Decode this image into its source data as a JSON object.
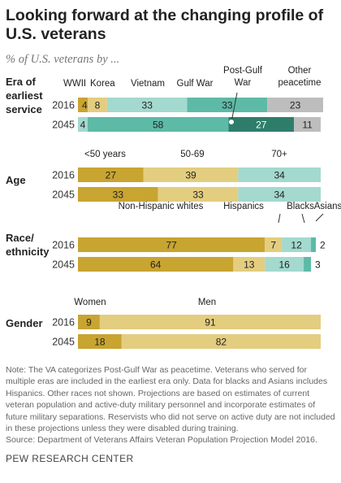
{
  "title": "Looking forward at the changing profile of U.S. veterans",
  "subtitle": "% of U.S. veterans by ...",
  "note": "Note: The VA categorizes Post-Gulf War as peacetime. Veterans who served for multiple eras are included in the earliest era only. Data for blacks and Asians includes Hispanics. Other races not shown. Projections are based on estimates of current veteran population and active-duty military personnel and incorporate estimates of future military separations. Reservists who did not serve on active duty are not included in these projections unless they were disabled during training.",
  "source": "Source: Department of Veterans Affairs Veteran Population Projection Model 2016.",
  "brand": "PEW RESEARCH CENTER",
  "chart_data": {
    "type": "bar",
    "orientation": "horizontal",
    "stacked": true,
    "xlim": [
      0,
      100
    ],
    "groups": [
      {
        "label": "Era of earliest service",
        "rows": [
          "2016",
          "2045"
        ],
        "series": [
          {
            "name": "WWII",
            "values": [
              4,
              0
            ],
            "color": "#c8a431"
          },
          {
            "name": "Korea",
            "values": [
              8,
              0
            ],
            "color": "#e3cd7f"
          },
          {
            "name": "Vietnam",
            "values": [
              33,
              4
            ],
            "color": "#a3d9cf"
          },
          {
            "name": "Gulf War",
            "values": [
              33,
              58
            ],
            "color": "#5dbaa7"
          },
          {
            "name": "Post-Gulf War",
            "values": [
              0,
              27
            ],
            "color": "#2e7d6b"
          },
          {
            "name": "Other peacetime",
            "values": [
              23,
              11
            ],
            "color": "#bdbdbd"
          }
        ]
      },
      {
        "label": "Age",
        "rows": [
          "2016",
          "2045"
        ],
        "series": [
          {
            "name": "<50 years",
            "values": [
              27,
              33
            ],
            "color": "#c8a431"
          },
          {
            "name": "50-69",
            "values": [
              39,
              33
            ],
            "color": "#e3cd7f"
          },
          {
            "name": "70+",
            "values": [
              34,
              34
            ],
            "color": "#a3d9cf"
          }
        ]
      },
      {
        "label": "Race/ ethnicity",
        "rows": [
          "2016",
          "2045"
        ],
        "series": [
          {
            "name": "Non-Hispanic whites",
            "values": [
              77,
              64
            ],
            "color": "#c8a431"
          },
          {
            "name": "Hispanics",
            "values": [
              7,
              13
            ],
            "color": "#e3cd7f"
          },
          {
            "name": "Blacks",
            "values": [
              12,
              16
            ],
            "color": "#a3d9cf"
          },
          {
            "name": "Asians",
            "values": [
              2,
              3
            ],
            "color": "#5dbaa7"
          }
        ]
      },
      {
        "label": "Gender",
        "rows": [
          "2016",
          "2045"
        ],
        "series": [
          {
            "name": "Women",
            "values": [
              9,
              18
            ],
            "color": "#c8a431"
          },
          {
            "name": "Men",
            "values": [
              91,
              82
            ],
            "color": "#e3cd7f"
          }
        ]
      }
    ]
  }
}
